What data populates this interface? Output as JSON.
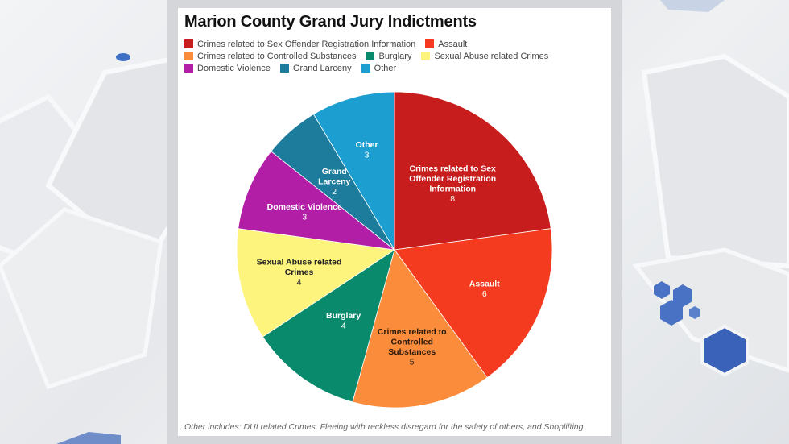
{
  "title": "Marion County Grand Jury Indictments",
  "footnote": "Other includes: DUI related Crimes, Fleeing with reckless disregard for the safety of others, and Shoplifting",
  "legend": {
    "rows": [
      [
        {
          "label": "Crimes related to Sex Offender Registration Information",
          "color": "#c81d1d"
        },
        {
          "label": "Assault",
          "color": "#f53b1f"
        }
      ],
      [
        {
          "label": "Crimes related to Controlled Substances",
          "color": "#fb8c3c"
        },
        {
          "label": "Burglary",
          "color": "#0a8a6c"
        },
        {
          "label": "Sexual Abuse related Crimes",
          "color": "#fcf47c"
        }
      ],
      [
        {
          "label": "Domestic Violence",
          "color": "#b21ea6"
        },
        {
          "label": "Grand Larceny",
          "color": "#1d7b9c"
        },
        {
          "label": "Other",
          "color": "#1c9fd0"
        }
      ]
    ]
  },
  "chart_data": {
    "type": "pie",
    "title": "Marion County Grand Jury Indictments",
    "start_angle": "top (12 o'clock), clockwise",
    "legend_position": "top",
    "total": 35,
    "slices": [
      {
        "label": "Crimes related to Sex Offender Registration Information",
        "display_label": [
          "Crimes related to Sex",
          "Offender Registration",
          "Information"
        ],
        "value": 8,
        "color": "#c81d1d",
        "text_color": "#ffffff"
      },
      {
        "label": "Assault",
        "display_label": [
          "Assault"
        ],
        "value": 6,
        "color": "#f53b1f",
        "text_color": "#ffffff"
      },
      {
        "label": "Crimes related to Controlled Substances",
        "display_label": [
          "Crimes related to",
          "Controlled",
          "Substances"
        ],
        "value": 5,
        "color": "#fb8c3c",
        "text_color": "#2a1a0a"
      },
      {
        "label": "Burglary",
        "display_label": [
          "Burglary"
        ],
        "value": 4,
        "color": "#0a8a6c",
        "text_color": "#ffffff"
      },
      {
        "label": "Sexual Abuse related Crimes",
        "display_label": [
          "Sexual Abuse related",
          "Crimes"
        ],
        "value": 4,
        "color": "#fcf47c",
        "text_color": "#222222"
      },
      {
        "label": "Domestic Violence",
        "display_label": [
          "Domestic Violence"
        ],
        "value": 3,
        "color": "#b21ea6",
        "text_color": "#ffffff"
      },
      {
        "label": "Grand Larceny",
        "display_label": [
          "Grand",
          "Larceny"
        ],
        "value": 2,
        "color": "#1d7b9c",
        "text_color": "#ffffff"
      },
      {
        "label": "Other",
        "display_label": [
          "Other"
        ],
        "value": 3,
        "color": "#1c9fd0",
        "text_color": "#ffffff"
      }
    ]
  }
}
